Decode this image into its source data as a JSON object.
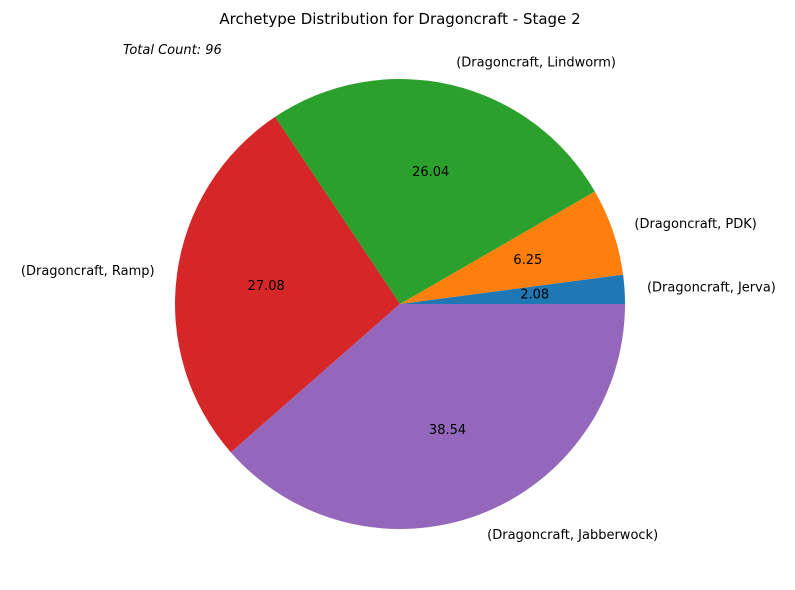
{
  "chart_data": {
    "type": "pie",
    "title": "Archetype Distribution for Dragoncraft - Stage 2",
    "annotation": "Total Count: 96",
    "slices": [
      {
        "label": "(Dragoncraft, Jerva)",
        "value": 2.08,
        "display": "2.08",
        "color": "#1f77b4"
      },
      {
        "label": "(Dragoncraft, PDK)",
        "value": 6.25,
        "display": "6.25",
        "color": "#ff7f0e"
      },
      {
        "label": "(Dragoncraft, Lindworm)",
        "value": 26.04,
        "display": "26.04",
        "color": "#2ca02c"
      },
      {
        "label": "(Dragoncraft, Ramp)",
        "value": 27.08,
        "display": "27.08",
        "color": "#d62728"
      },
      {
        "label": "(Dragoncraft, Jabberwock)",
        "value": 38.54,
        "display": "38.54",
        "color": "#9467bd"
      }
    ]
  }
}
